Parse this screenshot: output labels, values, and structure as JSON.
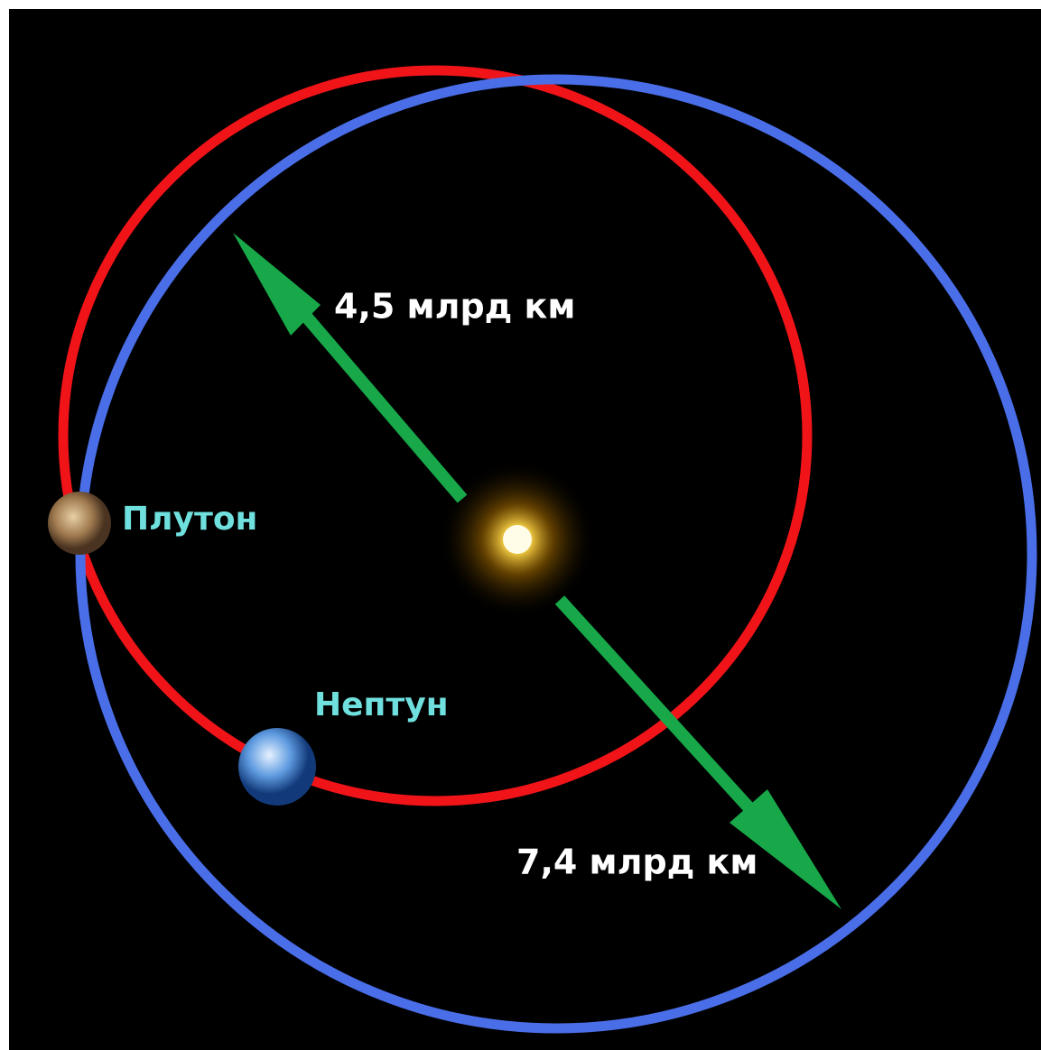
{
  "distances": {
    "inner": "4,5 млрд км",
    "outer": "7,4 млрд км"
  },
  "planets": {
    "pluto": "Плутон",
    "neptune": "Нептун"
  }
}
